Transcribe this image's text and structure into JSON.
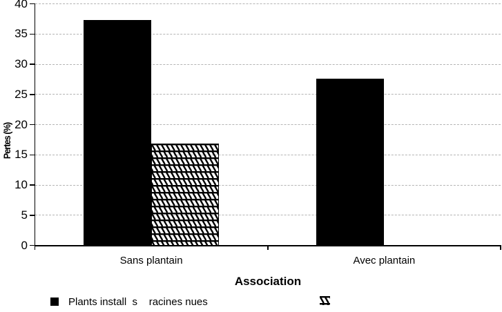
{
  "chart_data": {
    "type": "bar",
    "title": "",
    "categories": [
      "Sans plantain",
      "Avec plantain"
    ],
    "series": [
      {
        "name": "Plants install  s    racines nues",
        "style": "solid-black",
        "values": [
          37.3,
          27.6
        ]
      },
      {
        "name": "",
        "style": "diagonal-hatch",
        "values": [
          16.9,
          0
        ]
      }
    ],
    "xlabel": "Association",
    "ylabel": "Pertes (%)",
    "ylim": [
      0,
      40
    ],
    "ytick_step": 5,
    "grid": "horizontal-dashed",
    "legend_position": "bottom"
  },
  "colors": {
    "bars": "#000000",
    "grid": "#b3b3b3",
    "axis": "#000000",
    "background": "#ffffff",
    "text": "#000000"
  },
  "legend": {
    "item1_swatch": "solid-black-square",
    "item2_swatch": "hatched-square"
  }
}
